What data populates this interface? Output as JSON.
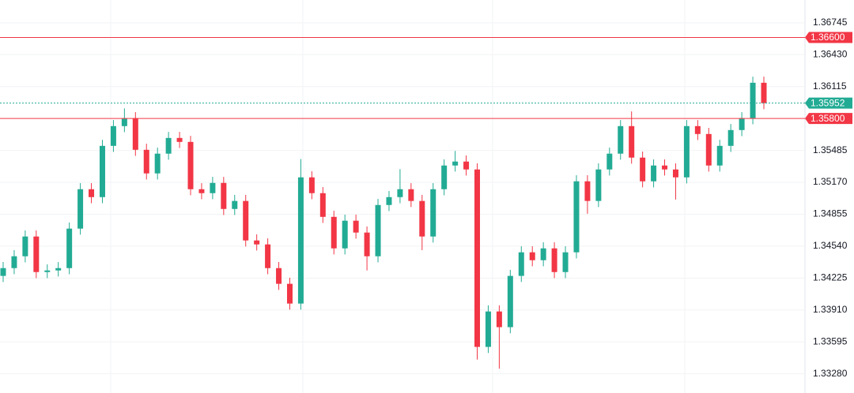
{
  "chart_data": {
    "type": "candlestick",
    "open": [
      1.34246,
      1.34323,
      1.3444,
      1.34635,
      1.34284,
      1.343,
      1.34323,
      1.34713,
      1.35102,
      1.35024,
      1.3553,
      1.35725,
      1.35803,
      1.35491,
      1.35258,
      1.35453,
      1.35608,
      1.35569,
      1.35102,
      1.35063,
      1.35164,
      1.34907,
      1.34986,
      1.34596,
      1.34557,
      1.34323,
      1.34168,
      1.33973,
      1.35219,
      1.35063,
      1.34829,
      1.34518,
      1.34791,
      1.34674,
      1.3444,
      1.34946,
      1.35024,
      1.35102,
      1.34986,
      1.34635,
      1.35102,
      1.35336,
      1.35375,
      1.35297,
      1.33545,
      1.33895,
      1.3374,
      1.34246,
      1.34479,
      1.34401,
      1.34518,
      1.34284,
      1.34479,
      1.3518,
      1.34986,
      1.35297,
      1.35453,
      1.35725,
      1.35414,
      1.3518,
      1.35336,
      1.35297,
      1.35219,
      1.35725,
      1.35647,
      1.35336,
      1.3553,
      1.35686,
      1.35803,
      1.36153
    ],
    "high": [
      1.34383,
      1.345,
      1.34695,
      1.34695,
      1.3436,
      1.34383,
      1.34773,
      1.35162,
      1.35162,
      1.3559,
      1.35785,
      1.359,
      1.35863,
      1.35551,
      1.35513,
      1.35668,
      1.35668,
      1.35629,
      1.35162,
      1.35224,
      1.35224,
      1.35046,
      1.35046,
      1.34656,
      1.34617,
      1.34383,
      1.34228,
      1.354,
      1.35279,
      1.35123,
      1.34889,
      1.34851,
      1.34851,
      1.34734,
      1.35006,
      1.35084,
      1.353,
      1.35162,
      1.35046,
      1.35162,
      1.35396,
      1.3548,
      1.35435,
      1.35357,
      1.33955,
      1.33955,
      1.34306,
      1.34539,
      1.34539,
      1.34578,
      1.34578,
      1.34539,
      1.3524,
      1.3524,
      1.35357,
      1.35513,
      1.35785,
      1.3587,
      1.35474,
      1.35396,
      1.35396,
      1.35357,
      1.35785,
      1.35785,
      1.35707,
      1.3559,
      1.35746,
      1.35863,
      1.36213,
      1.36213
    ],
    "low": [
      1.34186,
      1.34263,
      1.3438,
      1.34224,
      1.34224,
      1.3424,
      1.34263,
      1.34653,
      1.34964,
      1.34964,
      1.3547,
      1.35665,
      1.35431,
      1.35198,
      1.35198,
      1.35393,
      1.35509,
      1.35042,
      1.35003,
      1.35003,
      1.34847,
      1.34847,
      1.34536,
      1.34497,
      1.34263,
      1.34108,
      1.33913,
      1.33913,
      1.35003,
      1.34769,
      1.34458,
      1.34458,
      1.34614,
      1.343,
      1.3438,
      1.34886,
      1.34964,
      1.34926,
      1.345,
      1.34575,
      1.35042,
      1.35276,
      1.35237,
      1.3342,
      1.33485,
      1.3333,
      1.3368,
      1.34186,
      1.34341,
      1.34341,
      1.34224,
      1.34224,
      1.34419,
      1.3486,
      1.34926,
      1.35237,
      1.35393,
      1.35354,
      1.3512,
      1.3512,
      1.35237,
      1.35,
      1.35159,
      1.35587,
      1.35276,
      1.35276,
      1.3547,
      1.35626,
      1.35743,
      1.35892
    ],
    "close": [
      1.34323,
      1.3444,
      1.34635,
      1.34284,
      1.343,
      1.34323,
      1.34713,
      1.35102,
      1.35024,
      1.3553,
      1.35725,
      1.35803,
      1.35491,
      1.35258,
      1.35453,
      1.35608,
      1.35569,
      1.35102,
      1.35063,
      1.35164,
      1.34907,
      1.34986,
      1.34596,
      1.34557,
      1.34323,
      1.34168,
      1.33973,
      1.35219,
      1.35063,
      1.34829,
      1.34518,
      1.34791,
      1.34674,
      1.3444,
      1.34946,
      1.35024,
      1.35102,
      1.34986,
      1.34635,
      1.35102,
      1.35336,
      1.35375,
      1.35297,
      1.33545,
      1.33895,
      1.3374,
      1.34246,
      1.34479,
      1.34401,
      1.34518,
      1.34284,
      1.34479,
      1.3518,
      1.34986,
      1.35297,
      1.35453,
      1.35725,
      1.35414,
      1.3518,
      1.35336,
      1.35297,
      1.35219,
      1.35725,
      1.35647,
      1.35336,
      1.3553,
      1.35686,
      1.35803,
      1.36153,
      1.35952
    ],
    "up_color": "#22ab94",
    "down_color": "#f23645",
    "ylim": [
      1.3309,
      1.3697
    ],
    "yticks": [
      {
        "value": 1.36745,
        "label": "1.36745"
      },
      {
        "value": 1.3643,
        "label": "1.36430"
      },
      {
        "value": 1.36115,
        "label": "1.36115"
      },
      {
        "value": 1.35485,
        "label": "1.35485"
      },
      {
        "value": 1.3517,
        "label": "1.35170"
      },
      {
        "value": 1.34855,
        "label": "1.34855"
      },
      {
        "value": 1.3454,
        "label": "1.34540"
      },
      {
        "value": 1.34225,
        "label": "1.34225"
      },
      {
        "value": 1.3391,
        "label": "1.33910"
      },
      {
        "value": 1.33595,
        "label": "1.33595"
      },
      {
        "value": 1.3328,
        "label": "1.33280"
      }
    ],
    "price_lines": [
      {
        "value": 1.366,
        "label": "1.36600",
        "color": "#f23645",
        "style": "solid"
      },
      {
        "value": 1.35952,
        "label": "1.35952",
        "color": "#22ab94",
        "style": "dotted"
      },
      {
        "value": 1.358,
        "label": "1.35800",
        "color": "#f23645",
        "style": "solid"
      }
    ],
    "grid": true
  }
}
